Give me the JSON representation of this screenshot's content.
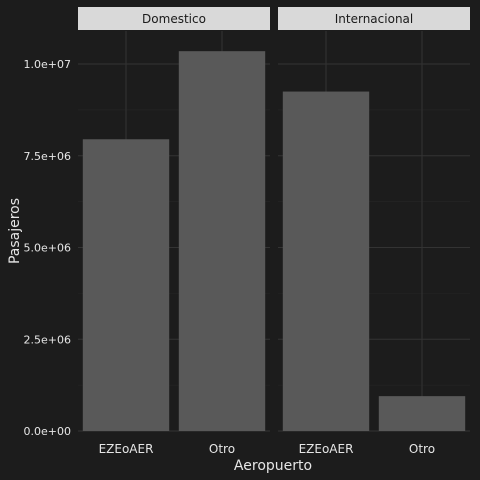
{
  "chart_data": {
    "type": "bar",
    "facets": [
      {
        "label": "Domestico",
        "categories": [
          "EZEoAER",
          "Otro"
        ],
        "values": [
          7950000,
          10350000
        ]
      },
      {
        "label": "Internacional",
        "categories": [
          "EZEoAER",
          "Otro"
        ],
        "values": [
          9250000,
          950000
        ]
      }
    ],
    "xlabel": "Aeropuerto",
    "ylabel": "Pasajeros",
    "ylim": [
      0,
      10900000
    ],
    "y_ticks": [
      0,
      2500000,
      5000000,
      7500000,
      10000000
    ],
    "y_tick_labels": [
      "0.0e+00",
      "2.5e+06",
      "5.0e+06",
      "7.5e+06",
      "1.0e+07"
    ],
    "grid": true,
    "colors": {
      "background": "#1c1c1c",
      "bar": "#595959",
      "strip": "#d9d9d9",
      "strip_text": "#1a1a1a",
      "grid_major": "#333333",
      "grid_minor": "#262626",
      "text": "#e6e6e6"
    }
  }
}
